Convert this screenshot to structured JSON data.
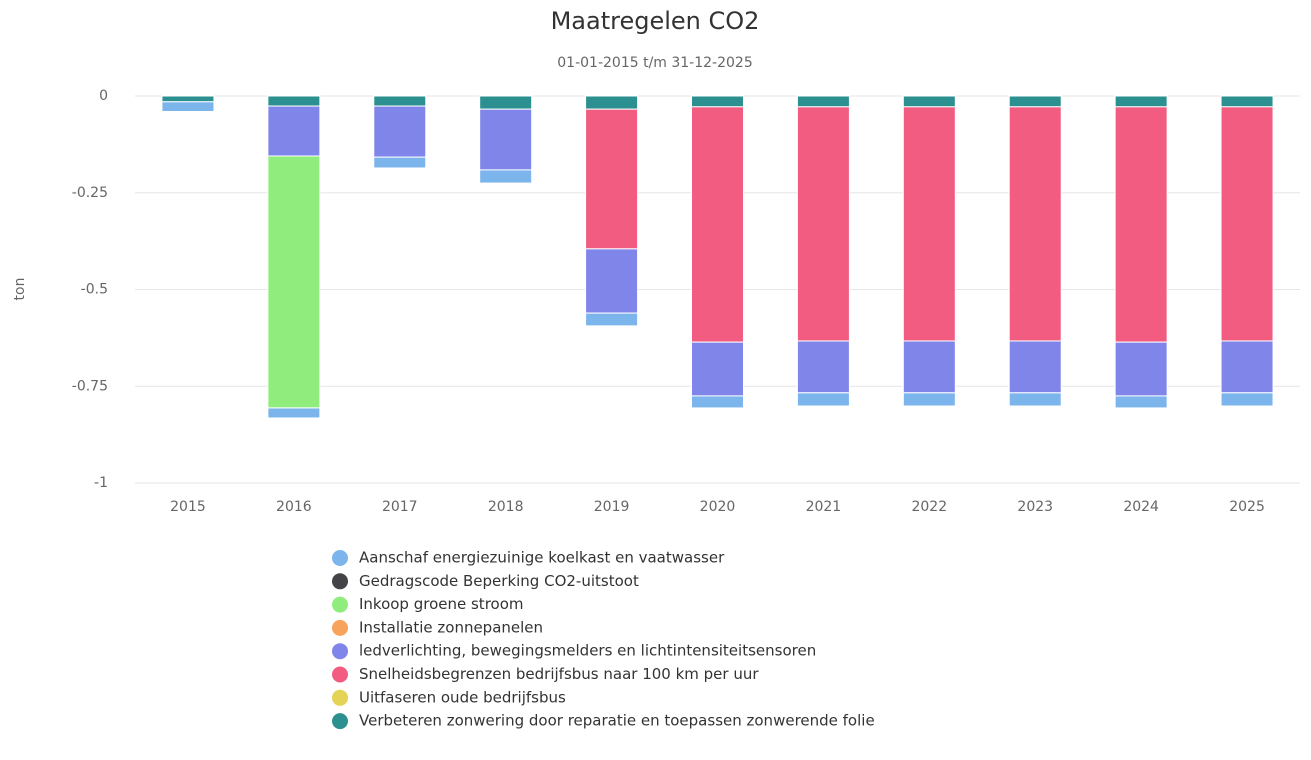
{
  "chart_data": {
    "type": "bar",
    "stacked": true,
    "title": "Maatregelen CO2",
    "subtitle": "01-01-2015 t/m 31-12-2025",
    "y_label": "ton",
    "categories": [
      "2015",
      "2016",
      "2017",
      "2018",
      "2019",
      "2020",
      "2021",
      "2022",
      "2023",
      "2024",
      "2025"
    ],
    "ylim": [
      -1,
      0
    ],
    "yticks": [
      0,
      -0.25,
      -0.5,
      -0.75,
      -1
    ],
    "grid": true,
    "legend": "bottom",
    "series": [
      {
        "name": "Aanschaf energiezuinige koelkast en vaatwasser",
        "color": "#7cb5ec",
        "values": [
          -0.025,
          -0.026,
          -0.028,
          -0.034,
          -0.033,
          -0.031,
          -0.034,
          -0.034,
          -0.034,
          -0.031,
          -0.034
        ]
      },
      {
        "name": "Gedragscode Beperking CO2-uitstoot",
        "color": "#434348",
        "values": [
          0,
          0,
          0,
          0,
          0,
          0,
          0,
          0,
          0,
          0,
          0
        ]
      },
      {
        "name": "Inkoop groene stroom",
        "color": "#90ed7d",
        "values": [
          0,
          -0.651,
          0,
          0,
          0,
          0,
          0,
          0,
          0,
          0,
          0
        ]
      },
      {
        "name": "Installatie zonnepanelen",
        "color": "#f7a35c",
        "values": [
          0,
          0,
          0,
          0,
          0,
          0,
          0,
          0,
          0,
          0,
          0
        ]
      },
      {
        "name": "ledverlichting, bewegingsmelders en lichtintensiteitsensoren",
        "color": "#8085e9",
        "values": [
          0,
          -0.129,
          -0.132,
          -0.157,
          -0.166,
          -0.139,
          -0.134,
          -0.134,
          -0.134,
          -0.139,
          -0.134
        ]
      },
      {
        "name": "Snelheidsbegrenzen bedrijfsbus naar 100 km per uur",
        "color": "#f15c80",
        "values": [
          0,
          0,
          0,
          0,
          -0.361,
          -0.608,
          -0.605,
          -0.605,
          -0.605,
          -0.608,
          -0.605
        ]
      },
      {
        "name": "Uitfaseren oude bedrijfsbus",
        "color": "#e4d354",
        "values": [
          0,
          0,
          0,
          0,
          0,
          0,
          0,
          0,
          0,
          0,
          0
        ]
      },
      {
        "name": "Verbeteren zonwering door reparatie en toepassen zonwerende folie",
        "color": "#2b908f",
        "values": [
          -0.015,
          -0.026,
          -0.026,
          -0.034,
          -0.034,
          -0.028,
          -0.028,
          -0.028,
          -0.028,
          -0.028,
          -0.028
        ]
      }
    ]
  }
}
